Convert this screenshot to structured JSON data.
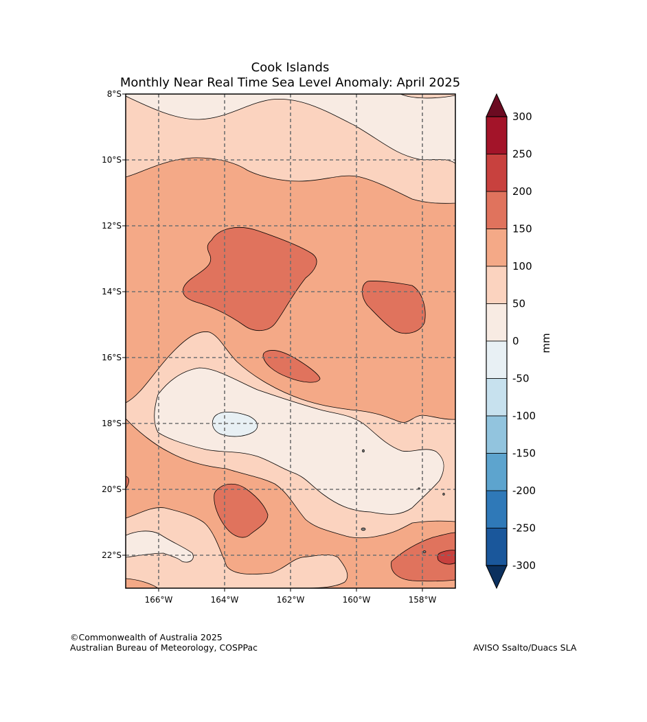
{
  "title": {
    "line1": "Cook Islands",
    "line2": "Monthly Near Real Time Sea Level Anomaly: April 2025"
  },
  "map": {
    "region": "Cook Islands",
    "variable": "Sea Level Anomaly",
    "longitude_range_deg": [
      -167,
      -157
    ],
    "latitude_range_deg": [
      -23,
      -8
    ],
    "lon_ticks": [
      "166°W",
      "164°W",
      "162°W",
      "160°W",
      "158°W"
    ],
    "lat_ticks": [
      "8°S",
      "10°S",
      "12°S",
      "14°S",
      "16°S",
      "18°S",
      "20°S",
      "22°S"
    ],
    "gridlines": "dashed"
  },
  "colorbar": {
    "unit_label": "mm",
    "levels": [
      "300",
      "250",
      "200",
      "150",
      "100",
      "50",
      "0",
      "-50",
      "-100",
      "-150",
      "-200",
      "-250",
      "-300"
    ],
    "colors": [
      "#a31429",
      "#c8413e",
      "#e0735d",
      "#f4a987",
      "#fbd3bf",
      "#f8ebe3",
      "#e8f0f4",
      "#c7e1ee",
      "#92c4de",
      "#5da4ce",
      "#2f79b8",
      "#1a579b"
    ],
    "over_color": "#6b0b21",
    "under_color": "#0b305e"
  },
  "credits": {
    "left_line1": "©Commonwealth of Australia 2025",
    "left_line2": "Australian Bureau of Meteorology, COSPPac",
    "right": "AVISO Ssalto/Duacs SLA"
  }
}
